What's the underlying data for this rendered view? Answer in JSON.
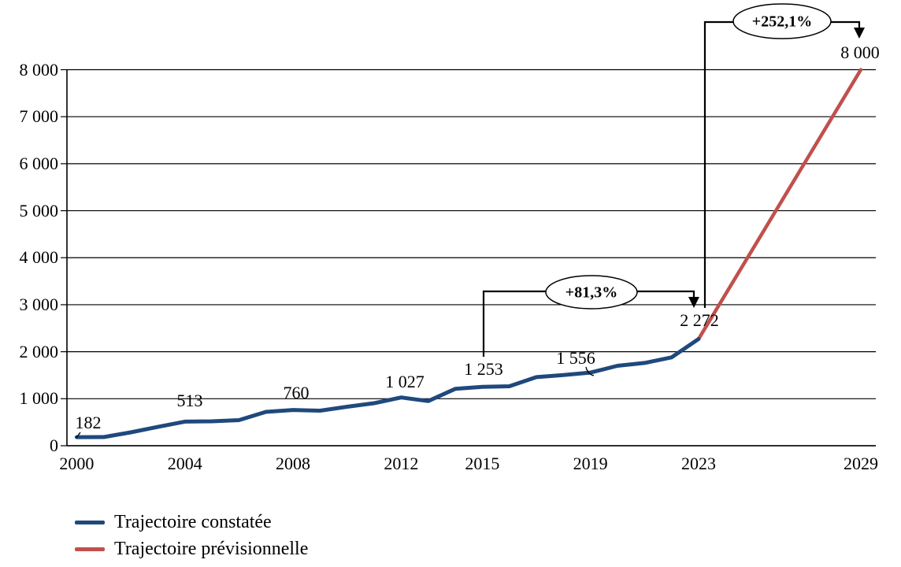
{
  "chart_data": {
    "type": "line",
    "title": "",
    "x_axis": {
      "tick_labels": [
        "2000",
        "2004",
        "2008",
        "2012",
        "2015",
        "2019",
        "2023",
        "2029"
      ],
      "tick_years": [
        2000,
        2004,
        2008,
        2012,
        2015,
        2019,
        2023,
        2029
      ],
      "range_years": [
        2000,
        2029
      ]
    },
    "y_axis": {
      "tick_labels": [
        "0",
        "1 000",
        "2 000",
        "3 000",
        "4 000",
        "5 000",
        "6 000",
        "7 000",
        "8 000"
      ],
      "tick_values": [
        0,
        1000,
        2000,
        3000,
        4000,
        5000,
        6000,
        7000,
        8000
      ],
      "ylim": [
        0,
        8000
      ],
      "grid": true
    },
    "series": [
      {
        "name": "Trajectoire constatée",
        "color": "#1F497D",
        "years": [
          2000,
          2001,
          2002,
          2003,
          2004,
          2005,
          2006,
          2007,
          2008,
          2009,
          2010,
          2011,
          2012,
          2013,
          2014,
          2015,
          2016,
          2017,
          2018,
          2019,
          2020,
          2021,
          2022,
          2023
        ],
        "values": [
          182,
          185,
          285,
          400,
          513,
          520,
          545,
          720,
          760,
          745,
          830,
          905,
          1027,
          950,
          1210,
          1253,
          1265,
          1460,
          1505,
          1556,
          1700,
          1760,
          1880,
          2272
        ]
      },
      {
        "name": "Trajectoire prévisionnelle",
        "color": "#C0504D",
        "years": [
          2023,
          2029
        ],
        "values": [
          2272,
          8000
        ]
      }
    ],
    "data_labels": [
      {
        "year": 2000,
        "value": 182,
        "text": "182"
      },
      {
        "year": 2004,
        "value": 513,
        "text": "513"
      },
      {
        "year": 2008,
        "value": 760,
        "text": "760"
      },
      {
        "year": 2012,
        "value": 1027,
        "text": "1 027"
      },
      {
        "year": 2015,
        "value": 1253,
        "text": "1 253"
      },
      {
        "year": 2019,
        "value": 1556,
        "text": "1 556"
      },
      {
        "year": 2023,
        "value": 2272,
        "text": "2 272"
      },
      {
        "year": 2029,
        "value": 8000,
        "text": "8 000"
      }
    ],
    "annotations": [
      {
        "label": "+81,3%",
        "from_year": 2015,
        "to_year": 2023
      },
      {
        "label": "+252,1%",
        "from_year": 2023,
        "to_year": 2029
      }
    ],
    "legend": {
      "position": "bottom-left",
      "items": [
        {
          "label": "Trajectoire constatée",
          "color": "#1F497D"
        },
        {
          "label": "Trajectoire prévisionnelle",
          "color": "#C0504D"
        }
      ]
    },
    "colors": {
      "observed": "#1F497D",
      "forecast": "#C0504D",
      "axis": "#000000",
      "grid": "#000000"
    }
  }
}
